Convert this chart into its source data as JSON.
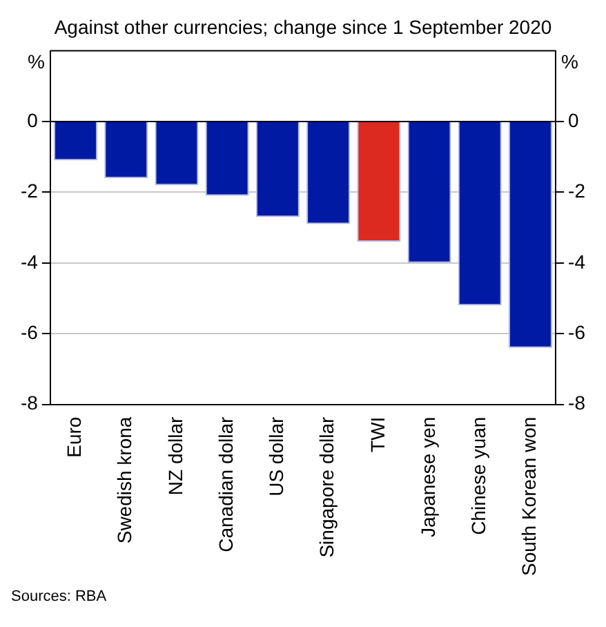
{
  "chart_data": {
    "type": "bar",
    "title": "Against other currencies; change since 1 September 2020",
    "categories": [
      "Euro",
      "Swedish krona",
      "NZ dollar",
      "Canadian dollar",
      "US dollar",
      "Singapore dollar",
      "TWI",
      "Japanese yen",
      "Chinese yuan",
      "South Korean won"
    ],
    "values": [
      -1.1,
      -1.6,
      -1.8,
      -2.1,
      -2.7,
      -2.9,
      -3.4,
      -4.0,
      -5.2,
      -6.4
    ],
    "colors": [
      "#001aa3",
      "#001aa3",
      "#001aa3",
      "#001aa3",
      "#001aa3",
      "#001aa3",
      "#dc2a20",
      "#001aa3",
      "#001aa3",
      "#001aa3"
    ],
    "ylabel": "%",
    "y2label": "%",
    "ylim": [
      -8,
      2
    ],
    "yticks": [
      -8,
      -6,
      -4,
      -2,
      0
    ],
    "y2lim": [
      -8,
      2
    ],
    "y2ticks": [
      -8,
      -6,
      -4,
      -2,
      0
    ],
    "grid": "y",
    "annotations": [
      "Sources: RBA"
    ]
  }
}
